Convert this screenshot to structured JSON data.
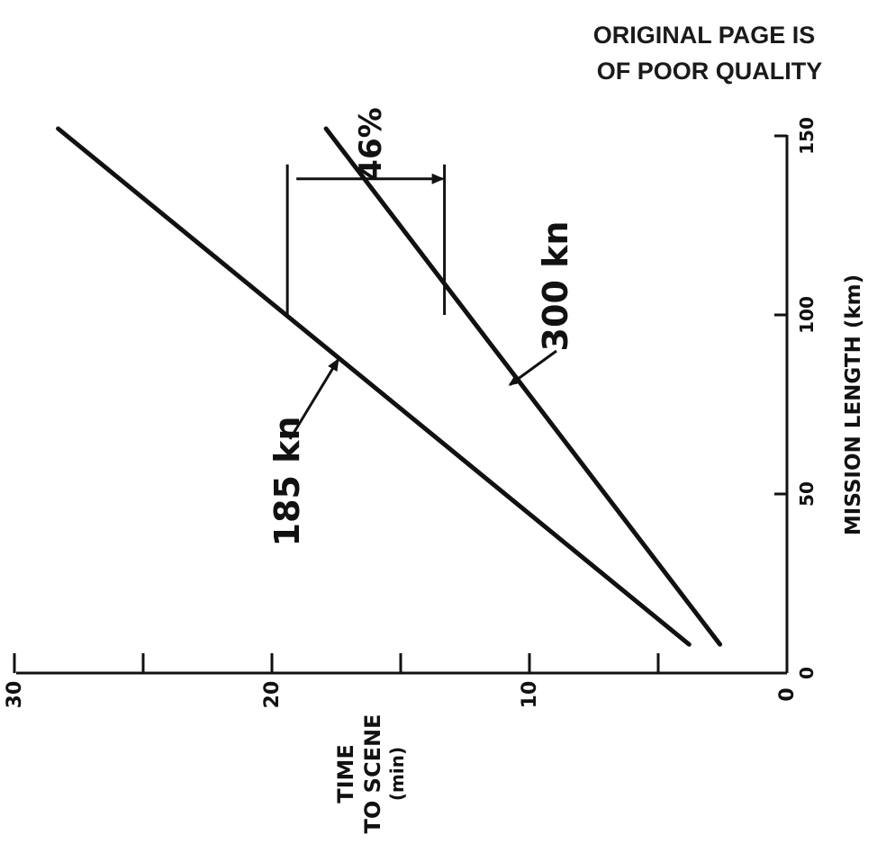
{
  "stamp": {
    "line1": "ORIGINAL PAGE IS",
    "line2": "OF POOR QUALITY"
  },
  "colors": {
    "ink": "#111111",
    "background": "#ffffff"
  },
  "chart_data": {
    "type": "line",
    "orientation": "rotated-90-clockwise",
    "xlabel": "MISSION LENGTH (km)",
    "ylabel_lines": [
      "TIME",
      "TO SCENE",
      "(min)"
    ],
    "xlim": [
      0,
      150
    ],
    "ylim": [
      0,
      30
    ],
    "xticks": [
      0,
      50,
      100,
      150
    ],
    "yticks": [
      0,
      10,
      20,
      30
    ],
    "yticks_minor": [
      5,
      15,
      25
    ],
    "grid": false,
    "series": [
      {
        "name": "185 kn",
        "x": [
          8,
          152
        ],
        "y": [
          3.8,
          28.3
        ]
      },
      {
        "name": "300 kn",
        "x": [
          8,
          152
        ],
        "y": [
          2.6,
          17.9
        ]
      }
    ],
    "annotations": [
      {
        "label": "185 kn",
        "points_to": {
          "x": 88,
          "y": 17.5
        }
      },
      {
        "label": "300 kn",
        "points_to": {
          "x": 80,
          "y": 10.9
        }
      },
      {
        "label": "46%",
        "bracket": {
          "x_from": 100,
          "x_to": 138,
          "from_y": 19.4,
          "to_y": 13.3
        }
      }
    ]
  }
}
